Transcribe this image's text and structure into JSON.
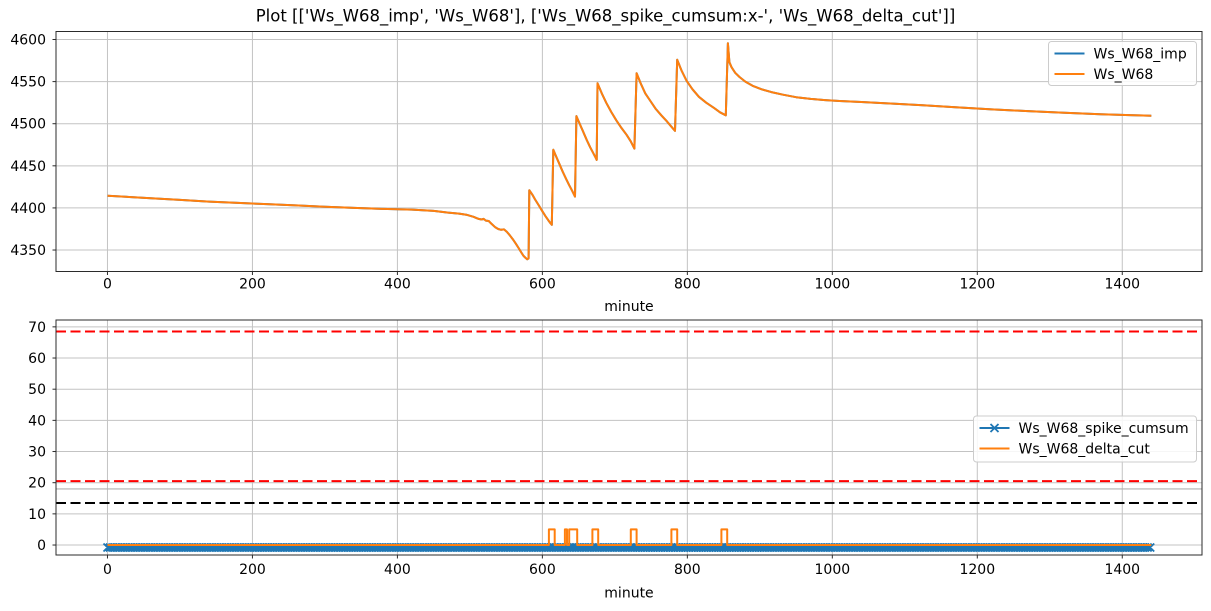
{
  "figure": {
    "title": "Plot [['Ws_W68_imp', 'Ws_W68'], ['Ws_W68_spike_cumsum:x-', 'Ws_W68_delta_cut']]",
    "background": "#ffffff"
  },
  "colors": {
    "blue": "#1f77b4",
    "orange": "#ff7f0e",
    "red": "#ff0000",
    "black": "#000000",
    "gray": "#b0b0b0",
    "grid": "#c3c3c3",
    "spine": "#2b2b2b",
    "legend_border": "#cccccc"
  },
  "chart_data": [
    {
      "type": "line",
      "xlabel": "minute",
      "xlim": [
        -71,
        1510
      ],
      "ylim": [
        4324.5,
        4609.5
      ],
      "xticks": [
        0,
        200,
        400,
        600,
        800,
        1000,
        1200,
        1400
      ],
      "yticks": [
        4350,
        4400,
        4450,
        4500,
        4550,
        4600
      ],
      "grid": true,
      "legend_position": "upper right",
      "series": [
        {
          "name": "Ws_W68_imp",
          "color": "#1f77b4",
          "points": "same_as:Ws_W68"
        },
        {
          "name": "Ws_W68",
          "color": "#ff7f0e",
          "points": [
            [
              0,
              4414.5
            ],
            [
              30,
              4413
            ],
            [
              60,
              4411.5
            ],
            [
              100,
              4409.5
            ],
            [
              140,
              4407.5
            ],
            [
              180,
              4406
            ],
            [
              220,
              4404.5
            ],
            [
              260,
              4403
            ],
            [
              300,
              4401.5
            ],
            [
              340,
              4400
            ],
            [
              380,
              4398.8
            ],
            [
              420,
              4398
            ],
            [
              450,
              4396.5
            ],
            [
              470,
              4394.5
            ],
            [
              485,
              4393.3
            ],
            [
              495,
              4392
            ],
            [
              505,
              4389.5
            ],
            [
              512,
              4387
            ],
            [
              516,
              4386.3
            ],
            [
              519,
              4387
            ],
            [
              522,
              4385
            ],
            [
              526,
              4384.5
            ],
            [
              530,
              4381
            ],
            [
              535,
              4377
            ],
            [
              539,
              4375
            ],
            [
              543,
              4374
            ],
            [
              547,
              4374.5
            ],
            [
              551,
              4371.5
            ],
            [
              555,
              4367.5
            ],
            [
              559,
              4363
            ],
            [
              563,
              4358
            ],
            [
              567,
              4352.5
            ],
            [
              571,
              4347
            ],
            [
              574,
              4343
            ],
            [
              577,
              4340.5
            ],
            [
              579,
              4339
            ],
            [
              581,
              4340
            ],
            [
              582,
              4421
            ],
            [
              586,
              4416
            ],
            [
              590,
              4410
            ],
            [
              595,
              4403
            ],
            [
              600,
              4396
            ],
            [
              604,
              4390.5
            ],
            [
              608,
              4385.5
            ],
            [
              611,
              4382
            ],
            [
              613,
              4380
            ],
            [
              615,
              4469
            ],
            [
              619,
              4461
            ],
            [
              623,
              4453
            ],
            [
              628,
              4443
            ],
            [
              633,
              4434
            ],
            [
              637,
              4427
            ],
            [
              641,
              4420.5
            ],
            [
              645,
              4413.5
            ],
            [
              647,
              4509
            ],
            [
              651,
              4501
            ],
            [
              656,
              4491
            ],
            [
              661,
              4481
            ],
            [
              666,
              4472
            ],
            [
              670,
              4465.5
            ],
            [
              673,
              4460.5
            ],
            [
              675,
              4457
            ],
            [
              676,
              4548
            ],
            [
              682,
              4536
            ],
            [
              688,
              4525
            ],
            [
              695,
              4514
            ],
            [
              702,
              4504
            ],
            [
              709,
              4495
            ],
            [
              716,
              4487
            ],
            [
              722,
              4479
            ],
            [
              727,
              4470.5
            ],
            [
              730,
              4560
            ],
            [
              736,
              4547
            ],
            [
              742,
              4536
            ],
            [
              749,
              4527
            ],
            [
              756,
              4518
            ],
            [
              764,
              4510
            ],
            [
              772,
              4502.5
            ],
            [
              778,
              4496.5
            ],
            [
              783,
              4491.5
            ],
            [
              786,
              4576
            ],
            [
              792,
              4563
            ],
            [
              799,
              4551
            ],
            [
              807,
              4541
            ],
            [
              816,
              4532
            ],
            [
              826,
              4525
            ],
            [
              837,
              4518.5
            ],
            [
              845,
              4513.5
            ],
            [
              853,
              4510
            ],
            [
              856,
              4595.5
            ],
            [
              858,
              4573
            ],
            [
              861,
              4567
            ],
            [
              866,
              4560.5
            ],
            [
              872,
              4555.5
            ],
            [
              880,
              4550
            ],
            [
              890,
              4545
            ],
            [
              902,
              4541
            ],
            [
              916,
              4537.5
            ],
            [
              932,
              4534.5
            ],
            [
              950,
              4531.5
            ],
            [
              970,
              4529.5
            ],
            [
              990,
              4528
            ],
            [
              1010,
              4527
            ],
            [
              1040,
              4525.8
            ],
            [
              1080,
              4524
            ],
            [
              1125,
              4522
            ],
            [
              1170,
              4519.5
            ],
            [
              1220,
              4517
            ],
            [
              1270,
              4515
            ],
            [
              1320,
              4513
            ],
            [
              1370,
              4511.3
            ],
            [
              1410,
              4510.2
            ],
            [
              1440,
              4509.5
            ]
          ]
        }
      ]
    },
    {
      "type": "line",
      "xlabel": "minute",
      "xlim": [
        -71,
        1510
      ],
      "ylim": [
        -3.2,
        72.2
      ],
      "xticks": [
        0,
        200,
        400,
        600,
        800,
        1000,
        1200,
        1400
      ],
      "yticks": [
        0,
        10,
        20,
        30,
        40,
        50,
        60,
        70
      ],
      "grid": true,
      "legend_position": "center right",
      "hlines": [
        {
          "y": 68.5,
          "color": "#ff0000",
          "linestyle": "dashed",
          "width": 2
        },
        {
          "y": 20.5,
          "color": "#ff0000",
          "linestyle": "dashed",
          "width": 2
        },
        {
          "y": 18.0,
          "color": "#b0b0b0",
          "linestyle": "solid",
          "width": 1.2
        },
        {
          "y": 13.5,
          "color": "#000000",
          "linestyle": "dashed",
          "width": 2
        }
      ],
      "series": [
        {
          "name": "Ws_W68_spike_cumsum",
          "color": "#1f77b4",
          "marker": "x",
          "y_constant": -0.8,
          "x_range": [
            0,
            1440
          ],
          "marker_step": 3.5
        },
        {
          "name": "Ws_W68_delta_cut",
          "color": "#ff7f0e",
          "baseline": 0,
          "pulse_height": 5,
          "x_range": [
            0,
            1440
          ],
          "pulses": [
            [
              609,
              617
            ],
            [
              631,
              634
            ],
            [
              637,
              648
            ],
            [
              669,
              677
            ],
            [
              722,
              730
            ],
            [
              778,
              786
            ],
            [
              847,
              855
            ]
          ]
        }
      ]
    }
  ]
}
